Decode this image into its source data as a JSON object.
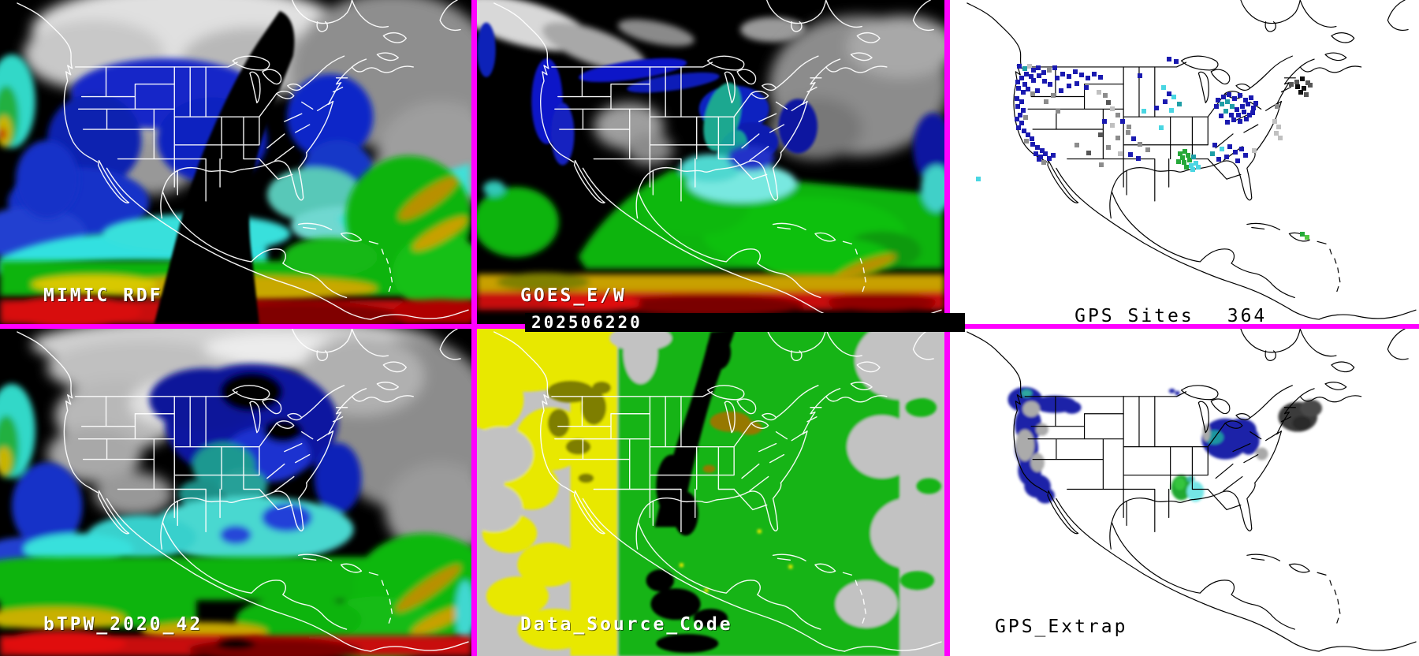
{
  "app": {
    "description": "Blended total precipitable water satellite/GPS monitoring display, 2x3 map grid"
  },
  "panels": {
    "mimic": {
      "label": "MIMIC RDF"
    },
    "goes": {
      "label": "GOES_E/W",
      "timestamp": "202506220"
    },
    "gps_sites": {
      "label": "GPS Sites",
      "count": "364"
    },
    "btpw": {
      "label": "bTPW_2020_42"
    },
    "data_source": {
      "label": "Data_Source_Code"
    },
    "gps_extrap": {
      "label": "GPS_Extrap"
    }
  },
  "colors": {
    "divider_magenta": "#FF00FF",
    "label_white": "#FFFFFF",
    "label_black": "#000000",
    "timebar_bg": "#000000",
    "gps_panel_bg": "#FFFFFF",
    "satellite_bg": "#000000",
    "source_bg": "#C2C2C2"
  },
  "gps_sites_map": {
    "palette": {
      "n": "#1A1AB0",
      "b": "#2A3ED6",
      "g": "#8C8C8C",
      "l": "#C0C0C0",
      "d": "#565656",
      "c": "#49D6E2",
      "t": "#1F9EA6",
      "e": "#25A839",
      "m": "#52C741",
      "k": "#101010"
    },
    "dots": [
      [
        88,
        84,
        "n"
      ],
      [
        95,
        87,
        "t"
      ],
      [
        101,
        84,
        "l"
      ],
      [
        106,
        89,
        "n"
      ],
      [
        112,
        86,
        "n"
      ],
      [
        97,
        94,
        "n"
      ],
      [
        103,
        97,
        "n"
      ],
      [
        91,
        99,
        "n"
      ],
      [
        86,
        104,
        "n"
      ],
      [
        95,
        107,
        "n"
      ],
      [
        106,
        102,
        "n"
      ],
      [
        113,
        96,
        "n"
      ],
      [
        119,
        92,
        "n"
      ],
      [
        126,
        89,
        "g"
      ],
      [
        133,
        86,
        "n"
      ],
      [
        87,
        112,
        "n"
      ],
      [
        93,
        117,
        "n"
      ],
      [
        99,
        113,
        "n"
      ],
      [
        105,
        119,
        "g"
      ],
      [
        111,
        115,
        "n"
      ],
      [
        85,
        125,
        "n"
      ],
      [
        91,
        129,
        "n"
      ],
      [
        86,
        135,
        "n"
      ],
      [
        93,
        140,
        "n"
      ],
      [
        89,
        146,
        "n"
      ],
      [
        85,
        151,
        "n"
      ],
      [
        96,
        149,
        "g"
      ],
      [
        91,
        156,
        "n"
      ],
      [
        87,
        162,
        "n"
      ],
      [
        94,
        166,
        "n"
      ],
      [
        99,
        171,
        "n"
      ],
      [
        104,
        176,
        "n"
      ],
      [
        97,
        179,
        "g"
      ],
      [
        105,
        183,
        "n"
      ],
      [
        111,
        187,
        "n"
      ],
      [
        117,
        191,
        "n"
      ],
      [
        109,
        195,
        "n"
      ],
      [
        115,
        199,
        "n"
      ],
      [
        121,
        195,
        "n"
      ],
      [
        126,
        201,
        "n"
      ],
      [
        119,
        206,
        "g"
      ],
      [
        113,
        202,
        "n"
      ],
      [
        131,
        197,
        "n"
      ],
      [
        120,
        103,
        "n"
      ],
      [
        127,
        107,
        "n"
      ],
      [
        136,
        99,
        "n"
      ],
      [
        143,
        94,
        "n"
      ],
      [
        151,
        97,
        "n"
      ],
      [
        159,
        91,
        "n"
      ],
      [
        167,
        95,
        "n"
      ],
      [
        175,
        99,
        "n"
      ],
      [
        151,
        109,
        "n"
      ],
      [
        161,
        106,
        "n"
      ],
      [
        141,
        115,
        "n"
      ],
      [
        131,
        121,
        "g"
      ],
      [
        173,
        111,
        "n"
      ],
      [
        183,
        94,
        "n"
      ],
      [
        191,
        98,
        "n"
      ],
      [
        122,
        129,
        "g"
      ],
      [
        137,
        141,
        "g"
      ],
      [
        189,
        117,
        "l"
      ],
      [
        197,
        121,
        "g"
      ],
      [
        201,
        130,
        "d"
      ],
      [
        206,
        138,
        "l"
      ],
      [
        213,
        146,
        "g"
      ],
      [
        196,
        154,
        "n"
      ],
      [
        206,
        159,
        "l"
      ],
      [
        191,
        171,
        "d"
      ],
      [
        213,
        175,
        "g"
      ],
      [
        201,
        187,
        "g"
      ],
      [
        216,
        195,
        "l"
      ],
      [
        227,
        161,
        "g"
      ],
      [
        241,
        96,
        "n"
      ],
      [
        262,
        137,
        "n"
      ],
      [
        271,
        111,
        "c"
      ],
      [
        278,
        119,
        "n"
      ],
      [
        284,
        123,
        "c"
      ],
      [
        273,
        129,
        "n"
      ],
      [
        291,
        132,
        "t"
      ],
      [
        281,
        140,
        "c"
      ],
      [
        268,
        162,
        "c"
      ],
      [
        246,
        141,
        "c"
      ],
      [
        340,
        127,
        "n"
      ],
      [
        347,
        123,
        "n"
      ],
      [
        354,
        120,
        "n"
      ],
      [
        361,
        125,
        "n"
      ],
      [
        368,
        121,
        "n"
      ],
      [
        375,
        127,
        "n"
      ],
      [
        382,
        124,
        "n"
      ],
      [
        338,
        135,
        "n"
      ],
      [
        345,
        132,
        "t"
      ],
      [
        352,
        129,
        "t"
      ],
      [
        358,
        135,
        "t"
      ],
      [
        350,
        141,
        "t"
      ],
      [
        344,
        147,
        "n"
      ],
      [
        357,
        146,
        "n"
      ],
      [
        364,
        139,
        "n"
      ],
      [
        371,
        135,
        "n"
      ],
      [
        378,
        132,
        "n"
      ],
      [
        385,
        137,
        "n"
      ],
      [
        366,
        146,
        "n"
      ],
      [
        373,
        142,
        "n"
      ],
      [
        380,
        146,
        "n"
      ],
      [
        360,
        152,
        "n"
      ],
      [
        352,
        155,
        "n"
      ],
      [
        368,
        154,
        "n"
      ],
      [
        376,
        151,
        "n"
      ],
      [
        384,
        143,
        "n"
      ],
      [
        388,
        131,
        "n"
      ],
      [
        278,
        75,
        "n"
      ],
      [
        287,
        78,
        "n"
      ],
      [
        415,
        135,
        "g"
      ],
      [
        440,
        104,
        "d"
      ],
      [
        447,
        100,
        "k"
      ],
      [
        454,
        105,
        "d"
      ],
      [
        441,
        110,
        "k"
      ],
      [
        433,
        107,
        "d"
      ],
      [
        449,
        112,
        "k"
      ],
      [
        457,
        108,
        "d"
      ],
      [
        445,
        117,
        "k"
      ],
      [
        452,
        120,
        "d"
      ],
      [
        412,
        154,
        "l"
      ],
      [
        417,
        161,
        "l"
      ],
      [
        414,
        169,
        "l"
      ],
      [
        419,
        175,
        "l"
      ],
      [
        292,
        195,
        "e"
      ],
      [
        298,
        192,
        "e"
      ],
      [
        295,
        200,
        "e"
      ],
      [
        302,
        197,
        "e"
      ],
      [
        290,
        205,
        "e"
      ],
      [
        297,
        206,
        "e"
      ],
      [
        304,
        203,
        "e"
      ],
      [
        309,
        199,
        "t"
      ],
      [
        306,
        210,
        "c"
      ],
      [
        312,
        207,
        "c"
      ],
      [
        300,
        212,
        "e"
      ],
      [
        308,
        215,
        "c"
      ],
      [
        315,
        212,
        "c"
      ],
      [
        336,
        184,
        "n"
      ],
      [
        345,
        189,
        "c"
      ],
      [
        355,
        186,
        "n"
      ],
      [
        333,
        195,
        "t"
      ],
      [
        362,
        193,
        "n"
      ],
      [
        370,
        189,
        "n"
      ],
      [
        341,
        202,
        "n"
      ],
      [
        351,
        199,
        "n"
      ],
      [
        365,
        204,
        "n"
      ],
      [
        375,
        197,
        "n"
      ],
      [
        386,
        191,
        "l"
      ],
      [
        226,
        168,
        "g"
      ],
      [
        233,
        176,
        "n"
      ],
      [
        241,
        183,
        "g"
      ],
      [
        219,
        154,
        "n"
      ],
      [
        251,
        190,
        "g"
      ],
      [
        229,
        196,
        "n"
      ],
      [
        239,
        201,
        "n"
      ],
      [
        192,
        209,
        "g"
      ],
      [
        176,
        194,
        "d"
      ],
      [
        161,
        184,
        "g"
      ],
      [
        447,
        297,
        "e"
      ],
      [
        453,
        301,
        "m"
      ],
      [
        36,
        227,
        "c"
      ]
    ]
  }
}
